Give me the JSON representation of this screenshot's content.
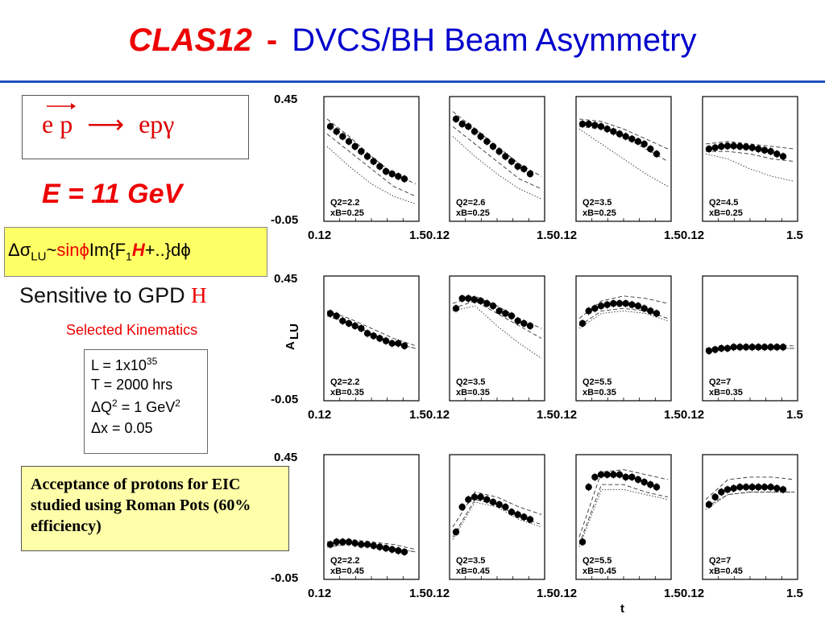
{
  "title": {
    "part1": "CLAS12",
    "dash": "-",
    "part2": "DVCS/BH Beam Asymmetry"
  },
  "reaction": {
    "lhs": "e p",
    "arrow": "⟶",
    "rhs": "epγ"
  },
  "energy": "E = 11 GeV",
  "formula": {
    "a": "Δσ",
    "b": "LU",
    "c": "~",
    "d": "sinϕ",
    "e": "Im{F",
    "f": "1",
    "g": "H",
    "h": "+..}dϕ"
  },
  "sensitive": {
    "text": "Sensitive to GPD ",
    "gpd": "H"
  },
  "selected": "Selected Kinematics",
  "params": {
    "L": "L = 1x10",
    "L_exp": "35",
    "T": "T = 2000 hrs",
    "Q2": "ΔQ",
    "Q2_sup": "2",
    "Q2_rest": " = 1 GeV",
    "Q2_sup2": "2",
    "dx": "Δx = 0.05"
  },
  "note": "Acceptance of protons for EIC studied using Roman Pots (60% efficiency)",
  "chart_data": {
    "type": "scatter",
    "ylabel": "A",
    "ylabel_sub": "LU",
    "xlabel": "t",
    "ylim": [
      -0.05,
      0.45
    ],
    "xlim": [
      0.12,
      1.5
    ],
    "y_tick_labels": [
      "0.45",
      "-0.05"
    ],
    "x_tick_labels": [
      "0.12",
      "1.50.12",
      "1.50.12",
      "1.50.12",
      "1.5"
    ],
    "panels": [
      {
        "q2": "Q2=2.2",
        "xb": "xB=0.25",
        "y": [
          0.33,
          0.31,
          0.29,
          0.27,
          0.25,
          0.23,
          0.21,
          0.19,
          0.17,
          0.15,
          0.14,
          0.13,
          0.12
        ],
        "theory_upper": [
          0.36,
          0.29,
          0.21,
          0.14,
          0.1
        ],
        "theory_lower": [
          0.3,
          0.23,
          0.16,
          0.09,
          0.05
        ],
        "theory_dotted": [
          0.25,
          0.17,
          0.1,
          0.05,
          0.02
        ]
      },
      {
        "q2": "Q2=2.6",
        "xb": "xB=0.25",
        "y": [
          0.36,
          0.34,
          0.33,
          0.31,
          0.29,
          0.27,
          0.25,
          0.23,
          0.21,
          0.19,
          0.17,
          0.16,
          0.14
        ],
        "theory_upper": [
          0.39,
          0.32,
          0.25,
          0.18,
          0.13
        ],
        "theory_lower": [
          0.33,
          0.26,
          0.19,
          0.12,
          0.08
        ],
        "theory_dotted": [
          0.29,
          0.21,
          0.14,
          0.08,
          0.04
        ]
      },
      {
        "q2": "Q2=3.5",
        "xb": "xB=0.25",
        "y": [
          0.34,
          0.34,
          0.335,
          0.33,
          0.32,
          0.31,
          0.3,
          0.29,
          0.28,
          0.27,
          0.26,
          0.24,
          0.22
        ],
        "theory_upper": [
          0.36,
          0.35,
          0.32,
          0.28,
          0.24
        ],
        "theory_lower": [
          0.33,
          0.32,
          0.29,
          0.24,
          0.19
        ],
        "theory_dotted": [
          0.32,
          0.26,
          0.2,
          0.14,
          0.09
        ]
      },
      {
        "q2": "Q2=4.5",
        "xb": "xB=0.25",
        "y": [
          0.24,
          0.245,
          0.25,
          0.252,
          0.252,
          0.25,
          0.248,
          0.245,
          0.24,
          0.235,
          0.23,
          0.22,
          0.21
        ],
        "theory_upper": [
          0.26,
          0.27,
          0.26,
          0.25,
          0.24
        ],
        "theory_lower": [
          0.23,
          0.23,
          0.22,
          0.2,
          0.19
        ],
        "theory_dotted": [
          0.22,
          0.2,
          0.16,
          0.13,
          0.11
        ]
      },
      {
        "q2": "Q2=2.2",
        "xb": "xB=0.35",
        "y": [
          0.3,
          0.29,
          0.27,
          0.26,
          0.25,
          0.24,
          0.22,
          0.21,
          0.2,
          0.19,
          0.18,
          0.18,
          0.17
        ],
        "theory_upper": [
          0.31,
          0.28,
          0.24,
          0.2,
          0.17
        ],
        "theory_lower": [
          0.29,
          0.26,
          0.22,
          0.18,
          0.16
        ],
        "theory_dotted": [
          0.29,
          0.26,
          0.22,
          0.18,
          0.16
        ]
      },
      {
        "q2": "Q2=3.5",
        "xb": "xB=0.35",
        "y": [
          0.32,
          0.36,
          0.36,
          0.355,
          0.35,
          0.34,
          0.33,
          0.31,
          0.3,
          0.29,
          0.27,
          0.26,
          0.25
        ],
        "theory_upper": [
          0.34,
          0.37,
          0.33,
          0.28,
          0.24
        ],
        "theory_lower": [
          0.32,
          0.35,
          0.3,
          0.25,
          0.2
        ],
        "theory_dotted": [
          0.31,
          0.33,
          0.25,
          0.18,
          0.12
        ]
      },
      {
        "q2": "Q2=5.5",
        "xb": "xB=0.35",
        "y": [
          0.26,
          0.31,
          0.32,
          0.33,
          0.335,
          0.34,
          0.34,
          0.34,
          0.335,
          0.33,
          0.32,
          0.31,
          0.3
        ],
        "theory_upper": [
          0.28,
          0.35,
          0.37,
          0.36,
          0.34
        ],
        "theory_lower": [
          0.25,
          0.31,
          0.32,
          0.31,
          0.28
        ],
        "theory_dotted": [
          0.24,
          0.3,
          0.31,
          0.3,
          0.27
        ]
      },
      {
        "q2": "Q2=7",
        "xb": "xB=0.35",
        "y": [
          0.15,
          0.155,
          0.16,
          0.16,
          0.165,
          0.165,
          0.165,
          0.165,
          0.165,
          0.165,
          0.165,
          0.165,
          0.165
        ],
        "theory_upper": [
          0.16,
          0.17,
          0.17,
          0.17,
          0.17
        ],
        "theory_lower": [
          0.15,
          0.16,
          0.16,
          0.16,
          0.16
        ],
        "theory_dotted": [
          0.15,
          0.16,
          0.16,
          0.16,
          0.16
        ]
      },
      {
        "q2": "Q2=2.2",
        "xb": "xB=0.45",
        "y": [
          0.09,
          0.1,
          0.1,
          0.1,
          0.095,
          0.09,
          0.09,
          0.085,
          0.08,
          0.075,
          0.07,
          0.065,
          0.06
        ],
        "theory_upper": [
          0.1,
          0.11,
          0.1,
          0.09,
          0.07
        ],
        "theory_lower": [
          0.08,
          0.09,
          0.085,
          0.075,
          0.06
        ],
        "theory_dotted": [
          0.08,
          0.09,
          0.085,
          0.075,
          0.06
        ]
      },
      {
        "q2": "Q2=3.5",
        "xb": "xB=0.45",
        "y": [
          0.14,
          0.24,
          0.27,
          0.28,
          0.28,
          0.27,
          0.26,
          0.25,
          0.24,
          0.22,
          0.21,
          0.2,
          0.19
        ],
        "theory_upper": [
          0.16,
          0.3,
          0.28,
          0.24,
          0.21
        ],
        "theory_lower": [
          0.12,
          0.27,
          0.25,
          0.2,
          0.17
        ],
        "theory_dotted": [
          0.11,
          0.26,
          0.24,
          0.19,
          0.16
        ]
      },
      {
        "q2": "Q2=5.5",
        "xb": "xB=0.45",
        "y": [
          0.1,
          0.32,
          0.36,
          0.37,
          0.37,
          0.37,
          0.37,
          0.36,
          0.36,
          0.35,
          0.34,
          0.33,
          0.32
        ],
        "theory_upper": [
          0.12,
          0.38,
          0.39,
          0.37,
          0.35
        ],
        "theory_lower": [
          0.09,
          0.33,
          0.33,
          0.3,
          0.28
        ],
        "theory_dotted": [
          0.08,
          0.31,
          0.31,
          0.29,
          0.27
        ]
      },
      {
        "q2": "Q2=7",
        "xb": "xB=0.45",
        "y": [
          0.25,
          0.28,
          0.3,
          0.31,
          0.315,
          0.32,
          0.32,
          0.32,
          0.32,
          0.32,
          0.32,
          0.315,
          0.31
        ],
        "theory_upper": [
          0.27,
          0.35,
          0.36,
          0.36,
          0.35
        ],
        "theory_lower": [
          0.24,
          0.29,
          0.3,
          0.3,
          0.3
        ],
        "theory_dotted": [
          0.23,
          0.29,
          0.3,
          0.3,
          0.3
        ]
      }
    ]
  }
}
